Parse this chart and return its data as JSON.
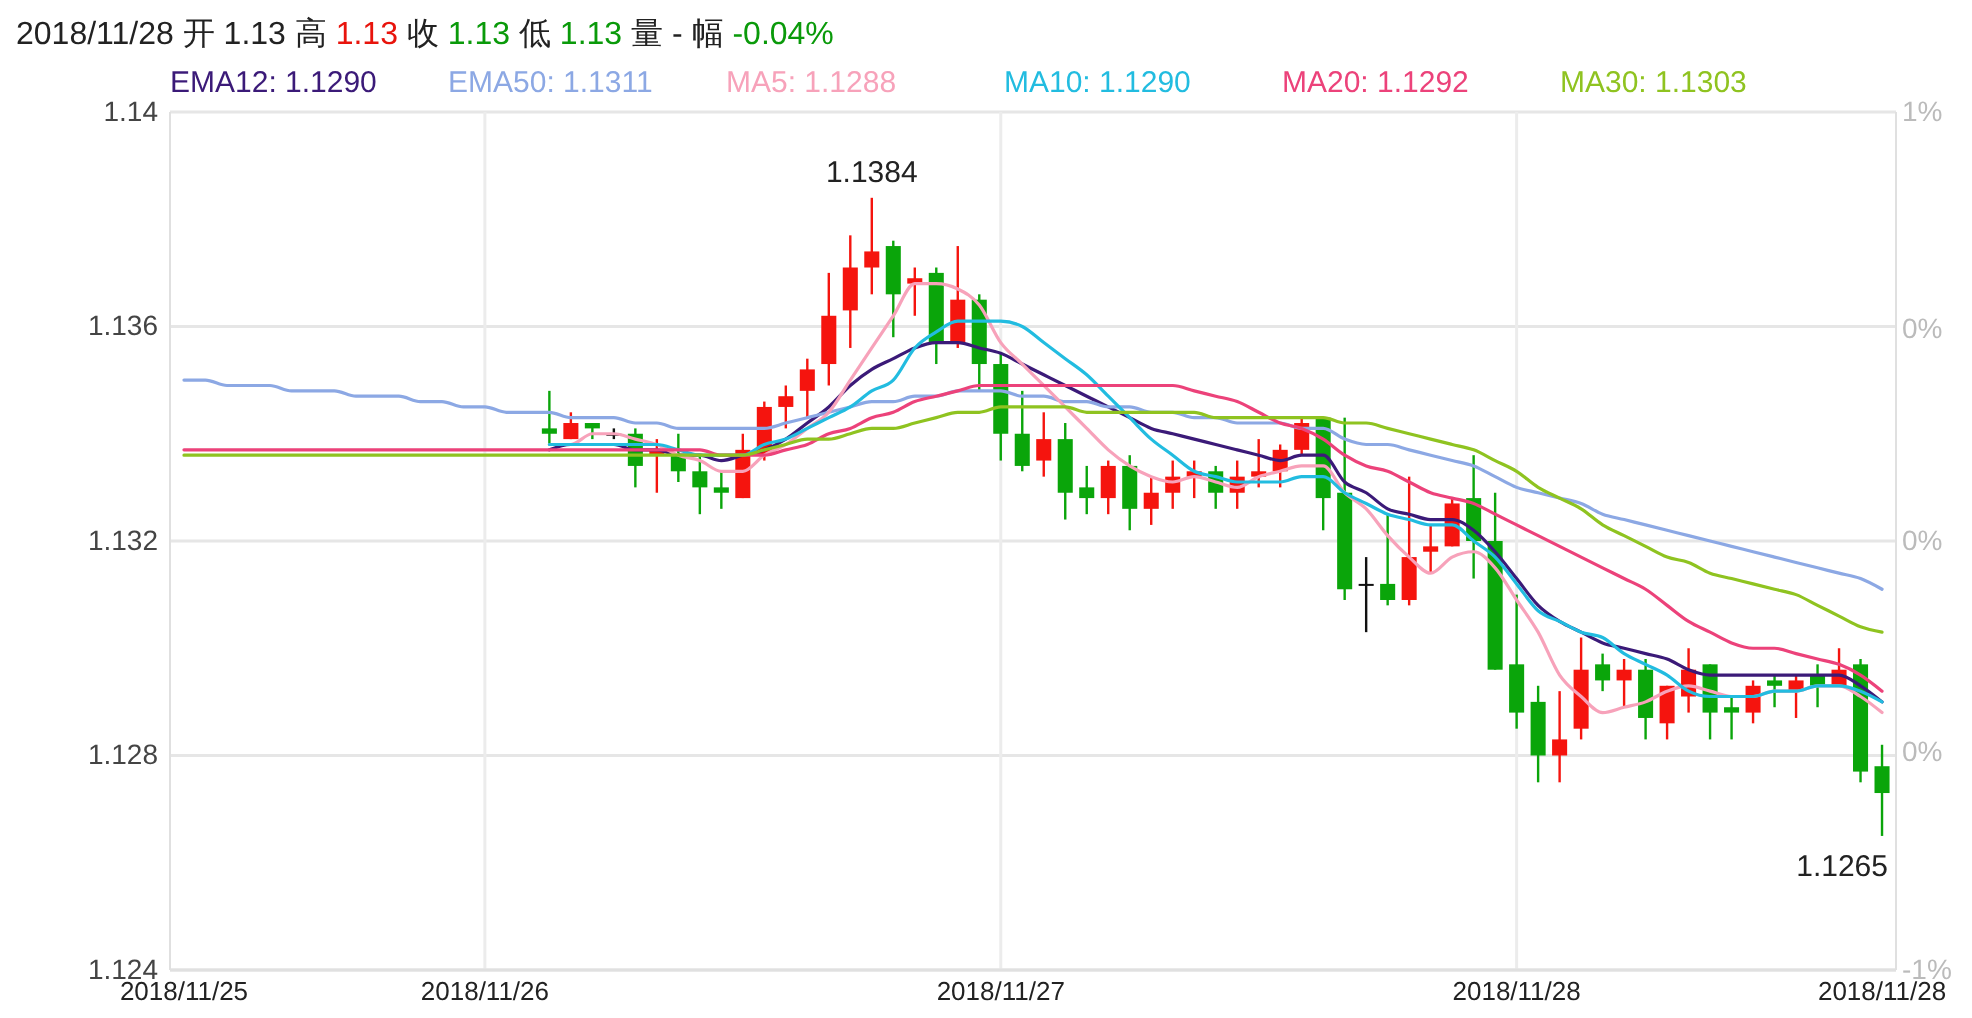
{
  "chart_data": {
    "type": "candlestick",
    "title": "2018/11/28 开 1.13 高 1.13 收 1.13 低 1.13 量 - 幅 -0.04%",
    "categories": [
      "2018/11/25",
      null,
      null,
      null,
      null,
      null,
      null,
      null,
      null,
      null,
      null,
      null,
      null,
      null,
      "2018/11/26",
      null,
      null,
      null,
      null,
      null,
      null,
      null,
      null,
      null,
      null,
      null,
      null,
      null,
      null,
      null,
      null,
      null,
      null,
      null,
      null,
      null,
      null,
      null,
      "2018/11/27",
      null,
      null,
      null,
      null,
      null,
      null,
      null,
      null,
      null,
      null,
      null,
      null,
      null,
      null,
      null,
      null,
      null,
      null,
      null,
      null,
      null,
      null,
      null,
      "2018/11/28",
      null,
      null,
      null,
      null,
      null,
      null,
      null,
      null,
      null,
      null,
      null,
      null,
      null,
      null,
      null,
      null,
      "2018/11/28"
    ],
    "ohlc": [
      null,
      null,
      null,
      null,
      null,
      null,
      null,
      null,
      null,
      null,
      null,
      null,
      null,
      null,
      null,
      null,
      null,
      [
        1.1341,
        1.1348,
        1.1338,
        1.134
      ],
      [
        1.1339,
        1.1344,
        1.1339,
        1.1342
      ],
      [
        1.1342,
        1.1342,
        1.1339,
        1.1341
      ],
      [
        1.134,
        1.1341,
        1.1339,
        1.134
      ],
      [
        1.134,
        1.1341,
        1.133,
        1.1334
      ],
      [
        1.1336,
        1.1339,
        1.1329,
        1.1337
      ],
      [
        1.1336,
        1.134,
        1.1331,
        1.1333
      ],
      [
        1.1333,
        1.1336,
        1.1325,
        1.133
      ],
      [
        1.133,
        1.1333,
        1.1326,
        1.1329
      ],
      [
        1.1328,
        1.134,
        1.1328,
        1.1337
      ],
      [
        1.1336,
        1.1346,
        1.1335,
        1.1345
      ],
      [
        1.1345,
        1.1349,
        1.1341,
        1.1347
      ],
      [
        1.1348,
        1.1354,
        1.1343,
        1.1352
      ],
      [
        1.1353,
        1.137,
        1.1349,
        1.1362
      ],
      [
        1.1363,
        1.1377,
        1.1356,
        1.1371
      ],
      [
        1.1371,
        1.1384,
        1.1366,
        1.1374
      ],
      [
        1.1375,
        1.1376,
        1.1358,
        1.1366
      ],
      [
        1.1368,
        1.1371,
        1.1362,
        1.1369
      ],
      [
        1.137,
        1.1371,
        1.1353,
        1.1357
      ],
      [
        1.1357,
        1.1375,
        1.1356,
        1.1365
      ],
      [
        1.1365,
        1.1366,
        1.1348,
        1.1353
      ],
      [
        1.1353,
        1.1355,
        1.1335,
        1.134
      ],
      [
        1.134,
        1.1348,
        1.1333,
        1.1334
      ],
      [
        1.1335,
        1.1344,
        1.1332,
        1.1339
      ],
      [
        1.1339,
        1.1342,
        1.1324,
        1.1329
      ],
      [
        1.133,
        1.1334,
        1.1325,
        1.1328
      ],
      [
        1.1328,
        1.1335,
        1.1325,
        1.1334
      ],
      [
        1.1334,
        1.1336,
        1.1322,
        1.1326
      ],
      [
        1.1326,
        1.1332,
        1.1323,
        1.1329
      ],
      [
        1.1329,
        1.1335,
        1.1326,
        1.1332
      ],
      [
        1.1332,
        1.1335,
        1.1328,
        1.1333
      ],
      [
        1.1333,
        1.1334,
        1.1326,
        1.1329
      ],
      [
        1.1329,
        1.1335,
        1.1326,
        1.1332
      ],
      [
        1.1332,
        1.1339,
        1.133,
        1.1333
      ],
      [
        1.1333,
        1.1338,
        1.133,
        1.1337
      ],
      [
        1.1337,
        1.1343,
        1.1336,
        1.1342
      ],
      [
        1.1343,
        1.1343,
        1.1322,
        1.1328
      ],
      [
        1.1329,
        1.1343,
        1.1309,
        1.1311
      ],
      [
        1.1312,
        1.1317,
        1.1303,
        1.1312
      ],
      [
        1.1312,
        1.1325,
        1.1308,
        1.1309
      ],
      [
        1.1309,
        1.1332,
        1.1308,
        1.1317
      ],
      [
        1.1318,
        1.1323,
        1.1314,
        1.1319
      ],
      [
        1.1319,
        1.1328,
        1.1319,
        1.1327
      ],
      [
        1.1328,
        1.1336,
        1.1313,
        1.132
      ],
      [
        1.132,
        1.1329,
        1.1296,
        1.1296
      ],
      [
        1.1297,
        1.131,
        1.1285,
        1.1288
      ],
      [
        1.129,
        1.1293,
        1.1275,
        1.128
      ],
      [
        1.128,
        1.1292,
        1.1275,
        1.1283
      ],
      [
        1.1285,
        1.1302,
        1.1283,
        1.1296
      ],
      [
        1.1297,
        1.1299,
        1.1292,
        1.1294
      ],
      [
        1.1294,
        1.1298,
        1.1289,
        1.1296
      ],
      [
        1.1296,
        1.1298,
        1.1283,
        1.1287
      ],
      [
        1.1286,
        1.1293,
        1.1283,
        1.1293
      ],
      [
        1.1291,
        1.13,
        1.1288,
        1.1296
      ],
      [
        1.1297,
        1.1297,
        1.1283,
        1.1288
      ],
      [
        1.1289,
        1.1291,
        1.1283,
        1.1288
      ],
      [
        1.1288,
        1.1294,
        1.1286,
        1.1293
      ],
      [
        1.1294,
        1.1295,
        1.1289,
        1.1293
      ],
      [
        1.1292,
        1.1295,
        1.1287,
        1.1294
      ],
      [
        1.1295,
        1.1297,
        1.1289,
        1.1293
      ],
      [
        1.1293,
        1.13,
        1.1293,
        1.1296
      ],
      [
        1.1297,
        1.1298,
        1.1275,
        1.1277
      ],
      [
        1.1278,
        1.1282,
        1.1265,
        1.1273
      ]
    ],
    "series": [
      {
        "type": "line",
        "name": "EMA12: 1.1290",
        "color": "#3b1a78",
        "values": [
          null,
          null,
          null,
          null,
          null,
          null,
          null,
          null,
          null,
          null,
          null,
          null,
          null,
          null,
          null,
          null,
          null,
          1.1337,
          1.1338,
          1.1338,
          1.1338,
          1.1337,
          1.1337,
          1.1336,
          1.1336,
          1.1335,
          1.1336,
          1.1337,
          1.1339,
          1.1342,
          1.1345,
          1.1349,
          1.1352,
          1.1354,
          1.1356,
          1.1357,
          1.1357,
          1.1356,
          1.1355,
          1.1353,
          1.1351,
          1.1349,
          1.1347,
          1.1345,
          1.1343,
          1.1341,
          1.134,
          1.1339,
          1.1338,
          1.1337,
          1.1336,
          1.1335,
          1.1336,
          1.1336,
          1.1331,
          1.1329,
          1.1326,
          1.1325,
          1.1324,
          1.1324,
          1.1322,
          1.1318,
          1.1313,
          1.1308,
          1.1305,
          1.1303,
          1.1301,
          1.13,
          1.1299,
          1.1298,
          1.1296,
          1.1295,
          1.1295,
          1.1295,
          1.1295,
          1.1295,
          1.1295,
          1.1295,
          1.1293,
          1.129
        ]
      },
      {
        "type": "line",
        "name": "EMA50: 1.1311",
        "color": "#8ca8e4",
        "values": [
          1.135,
          1.135,
          1.1349,
          1.1349,
          1.1349,
          1.1348,
          1.1348,
          1.1348,
          1.1347,
          1.1347,
          1.1347,
          1.1346,
          1.1346,
          1.1345,
          1.1345,
          1.1344,
          1.1344,
          1.1344,
          1.1343,
          1.1343,
          1.1343,
          1.1342,
          1.1342,
          1.1341,
          1.1341,
          1.1341,
          1.1341,
          1.1341,
          1.1342,
          1.1343,
          1.1344,
          1.1345,
          1.1346,
          1.1346,
          1.1347,
          1.1347,
          1.1348,
          1.1348,
          1.1348,
          1.1347,
          1.1347,
          1.1346,
          1.1346,
          1.1345,
          1.1345,
          1.1344,
          1.1344,
          1.1343,
          1.1343,
          1.1342,
          1.1342,
          1.1342,
          1.1341,
          1.1341,
          1.1339,
          1.1338,
          1.1338,
          1.1337,
          1.1336,
          1.1335,
          1.1334,
          1.1332,
          1.133,
          1.1329,
          1.1328,
          1.1327,
          1.1325,
          1.1324,
          1.1323,
          1.1322,
          1.1321,
          1.132,
          1.1319,
          1.1318,
          1.1317,
          1.1316,
          1.1315,
          1.1314,
          1.1313,
          1.1311
        ]
      },
      {
        "type": "line",
        "name": "MA5: 1.1288",
        "color": "#f7a2ba",
        "values": [
          null,
          null,
          null,
          null,
          null,
          null,
          null,
          null,
          null,
          null,
          null,
          null,
          null,
          null,
          null,
          null,
          null,
          1.1338,
          1.1338,
          1.134,
          1.134,
          1.1339,
          1.1338,
          1.1336,
          1.1335,
          1.1333,
          1.1333,
          1.1336,
          1.1338,
          1.1341,
          1.1344,
          1.135,
          1.1356,
          1.1362,
          1.1368,
          1.1368,
          1.1367,
          1.1364,
          1.1357,
          1.1353,
          1.1349,
          1.1345,
          1.1341,
          1.1337,
          1.1334,
          1.1332,
          1.1331,
          1.1332,
          1.1331,
          1.133,
          1.1332,
          1.1333,
          1.1334,
          1.1334,
          1.1329,
          1.1326,
          1.1321,
          1.1317,
          1.1314,
          1.1317,
          1.1318,
          1.1315,
          1.1309,
          1.1303,
          1.1295,
          1.1291,
          1.1288,
          1.1289,
          1.129,
          1.1292,
          1.1293,
          1.1292,
          1.1291,
          1.1291,
          1.1292,
          1.1292,
          1.1293,
          1.1293,
          1.1291,
          1.1288
        ]
      },
      {
        "type": "line",
        "name": "MA10: 1.1290",
        "color": "#22bce0",
        "values": [
          null,
          null,
          null,
          null,
          null,
          null,
          null,
          null,
          null,
          null,
          null,
          null,
          null,
          null,
          null,
          null,
          null,
          1.1338,
          1.1338,
          1.1338,
          1.1338,
          1.1338,
          1.1338,
          1.1337,
          1.1336,
          1.1336,
          1.1336,
          1.1338,
          1.1339,
          1.1341,
          1.1343,
          1.1345,
          1.1348,
          1.135,
          1.1356,
          1.1359,
          1.1361,
          1.1361,
          1.1361,
          1.136,
          1.1357,
          1.1354,
          1.1351,
          1.1347,
          1.1343,
          1.1339,
          1.1336,
          1.1333,
          1.1332,
          1.1331,
          1.1331,
          1.1331,
          1.1332,
          1.1332,
          1.1329,
          1.1327,
          1.1325,
          1.1324,
          1.1323,
          1.1323,
          1.132,
          1.1317,
          1.1312,
          1.1307,
          1.1305,
          1.1303,
          1.1302,
          1.1299,
          1.1297,
          1.1295,
          1.1292,
          1.1291,
          1.1291,
          1.1291,
          1.1292,
          1.1292,
          1.1293,
          1.1293,
          1.1292,
          1.129
        ]
      },
      {
        "type": "line",
        "name": "MA20: 1.1292",
        "color": "#ec427a",
        "values": [
          1.1337,
          1.1337,
          1.1337,
          1.1337,
          1.1337,
          1.1337,
          1.1337,
          1.1337,
          1.1337,
          1.1337,
          1.1337,
          1.1337,
          1.1337,
          1.1337,
          1.1337,
          1.1337,
          1.1337,
          1.1337,
          1.1337,
          1.1337,
          1.1337,
          1.1337,
          1.1337,
          1.1337,
          1.1337,
          1.1336,
          1.1336,
          1.1336,
          1.1337,
          1.1338,
          1.134,
          1.1341,
          1.1343,
          1.1344,
          1.1346,
          1.1347,
          1.1348,
          1.1349,
          1.1349,
          1.1349,
          1.1349,
          1.1349,
          1.1349,
          1.1349,
          1.1349,
          1.1349,
          1.1349,
          1.1348,
          1.1347,
          1.1346,
          1.1344,
          1.1342,
          1.1341,
          1.1339,
          1.1336,
          1.1334,
          1.1333,
          1.1331,
          1.1329,
          1.1328,
          1.1327,
          1.1325,
          1.1323,
          1.1321,
          1.1319,
          1.1317,
          1.1315,
          1.1313,
          1.1311,
          1.1308,
          1.1305,
          1.1303,
          1.1301,
          1.13,
          1.13,
          1.1299,
          1.1298,
          1.1297,
          1.1295,
          1.1292
        ]
      },
      {
        "type": "line",
        "name": "MA30: 1.1303",
        "color": "#8fc320",
        "values": [
          1.1336,
          1.1336,
          1.1336,
          1.1336,
          1.1336,
          1.1336,
          1.1336,
          1.1336,
          1.1336,
          1.1336,
          1.1336,
          1.1336,
          1.1336,
          1.1336,
          1.1336,
          1.1336,
          1.1336,
          1.1336,
          1.1336,
          1.1336,
          1.1336,
          1.1336,
          1.1336,
          1.1336,
          1.1336,
          1.1336,
          1.1336,
          1.1337,
          1.1338,
          1.1339,
          1.1339,
          1.134,
          1.1341,
          1.1341,
          1.1342,
          1.1343,
          1.1344,
          1.1344,
          1.1345,
          1.1345,
          1.1345,
          1.1345,
          1.1344,
          1.1344,
          1.1344,
          1.1344,
          1.1344,
          1.1344,
          1.1343,
          1.1343,
          1.1343,
          1.1343,
          1.1343,
          1.1343,
          1.1342,
          1.1342,
          1.1341,
          1.134,
          1.1339,
          1.1338,
          1.1337,
          1.1335,
          1.1333,
          1.133,
          1.1328,
          1.1326,
          1.1323,
          1.1321,
          1.1319,
          1.1317,
          1.1316,
          1.1314,
          1.1313,
          1.1312,
          1.1311,
          1.131,
          1.1308,
          1.1306,
          1.1304,
          1.1303
        ]
      }
    ],
    "ylim": [
      1.124,
      1.14
    ],
    "yticks": [
      1.124,
      1.128,
      1.132,
      1.136,
      1.14
    ],
    "y2lim": [
      -0.71,
      0.71
    ],
    "y2ticks": [
      {
        "value": -0.71,
        "label": "-1%"
      },
      {
        "value": -0.35,
        "label": "0%"
      },
      {
        "value": 0,
        "label": "0%"
      },
      {
        "value": 0.35,
        "label": "0%"
      },
      {
        "value": 0.71,
        "label": "1%"
      }
    ],
    "annotations": [
      {
        "text": "1.1384",
        "y": 1.1384
      },
      "1.1265"
    ],
    "grid": true,
    "legend": "top"
  }
}
